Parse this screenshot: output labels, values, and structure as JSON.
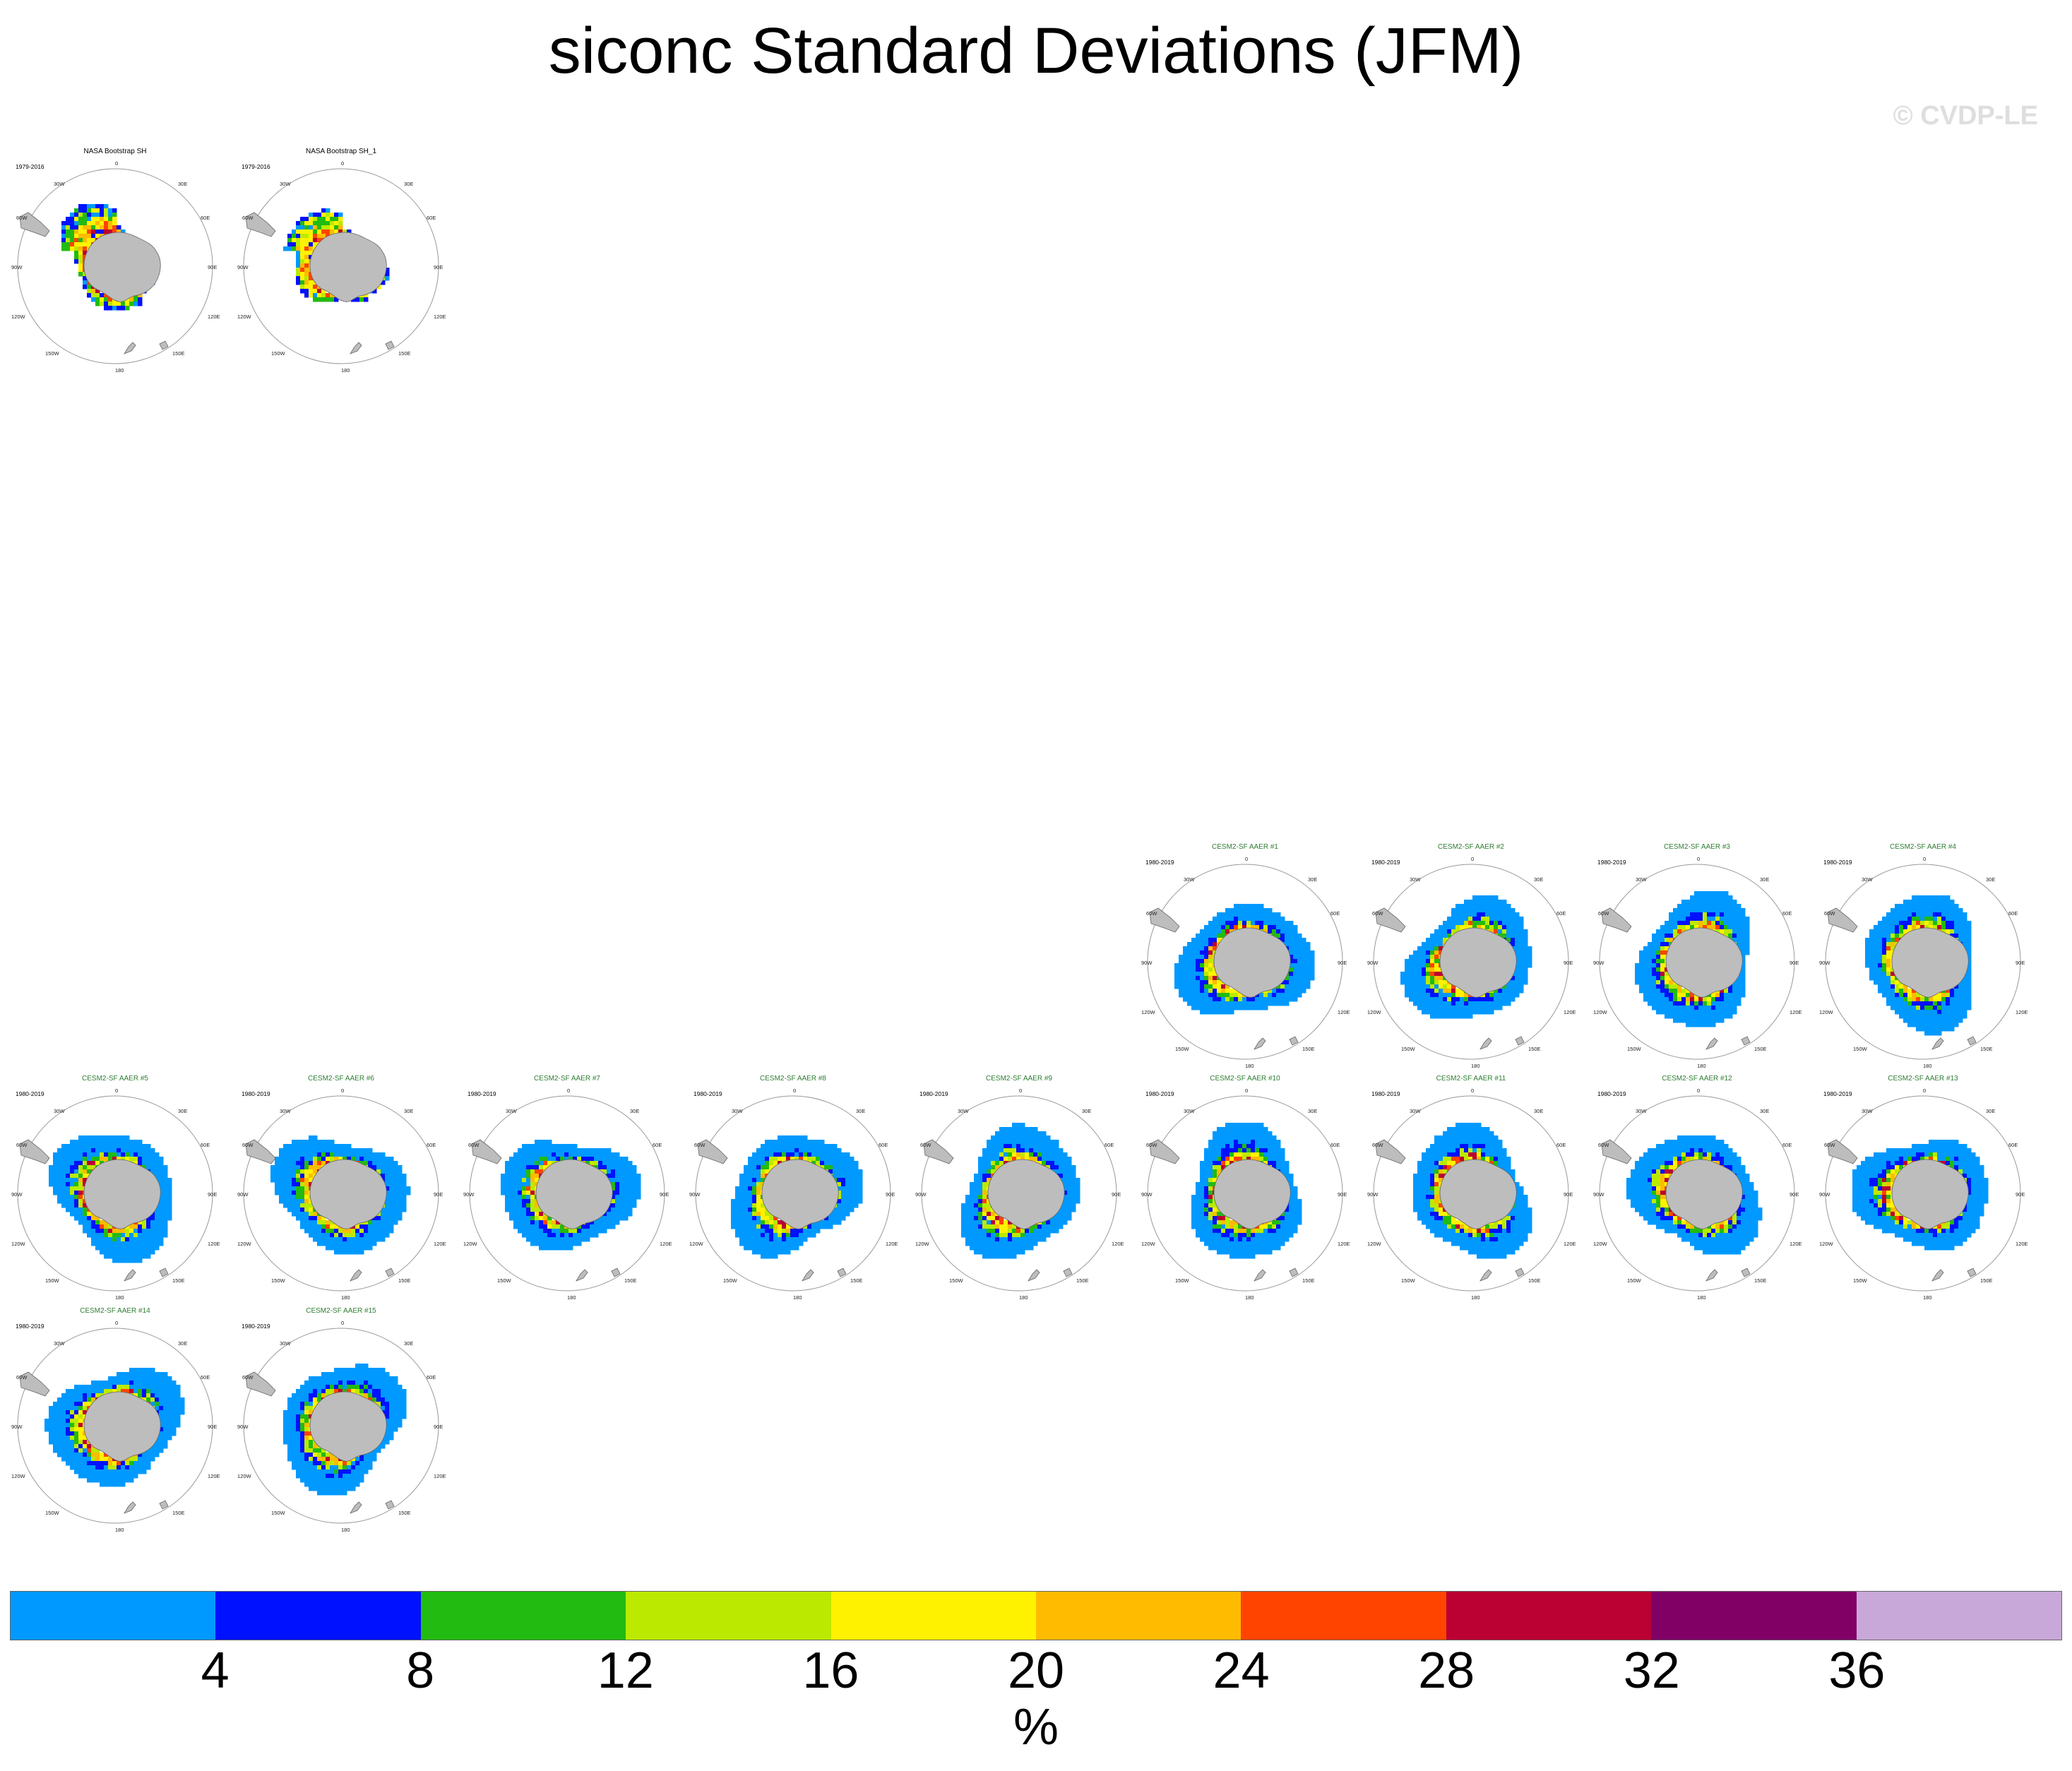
{
  "figure": {
    "title": "siconc Standard Deviations (JFM)",
    "credit": "© CVDP-LE"
  },
  "chart_data": {
    "type": "heatmap",
    "title": "siconc Standard Deviations (JFM)",
    "projection": "south-polar-stereographic",
    "grid_labels": {
      "top": "0",
      "bottom": "180",
      "tl": "30W",
      "tr": "30E",
      "ul": "60W",
      "ur": "60E",
      "ml": "90W",
      "mr": "90E",
      "ll": "120W",
      "lr": "120E",
      "bl": "150W",
      "br": "150E"
    },
    "panels": [
      {
        "name": "NASA Bootstrap SH",
        "period": "1979-2016",
        "type": "obs"
      },
      {
        "name": "NASA Bootstrap SH_1",
        "period": "1979-2016",
        "type": "obs"
      },
      {
        "name": "CESM2-SF AAER #1",
        "period": "1980-2019",
        "type": "model"
      },
      {
        "name": "CESM2-SF AAER #2",
        "period": "1980-2019",
        "type": "model"
      },
      {
        "name": "CESM2-SF AAER #3",
        "period": "1980-2019",
        "type": "model"
      },
      {
        "name": "CESM2-SF AAER #4",
        "period": "1980-2019",
        "type": "model"
      },
      {
        "name": "CESM2-SF AAER #5",
        "period": "1980-2019",
        "type": "model"
      },
      {
        "name": "CESM2-SF AAER #6",
        "period": "1980-2019",
        "type": "model"
      },
      {
        "name": "CESM2-SF AAER #7",
        "period": "1980-2019",
        "type": "model"
      },
      {
        "name": "CESM2-SF AAER #8",
        "period": "1980-2019",
        "type": "model"
      },
      {
        "name": "CESM2-SF AAER #9",
        "period": "1980-2019",
        "type": "model"
      },
      {
        "name": "CESM2-SF AAER #10",
        "period": "1980-2019",
        "type": "model"
      },
      {
        "name": "CESM2-SF AAER #11",
        "period": "1980-2019",
        "type": "model"
      },
      {
        "name": "CESM2-SF AAER #12",
        "period": "1980-2019",
        "type": "model"
      },
      {
        "name": "CESM2-SF AAER #13",
        "period": "1980-2019",
        "type": "model"
      },
      {
        "name": "CESM2-SF AAER #14",
        "period": "1980-2019",
        "type": "model"
      },
      {
        "name": "CESM2-SF AAER #15",
        "period": "1980-2019",
        "type": "model"
      }
    ],
    "colorbar": {
      "levels": [
        "4",
        "8",
        "12",
        "16",
        "20",
        "24",
        "28",
        "32",
        "36"
      ],
      "colors": [
        "#0099ff",
        "#0011ff",
        "#22bb11",
        "#bbea00",
        "#fff200",
        "#ffbb00",
        "#ff4400",
        "#bb0033",
        "#800066",
        "#c8a8d8"
      ],
      "units": "%"
    }
  },
  "style": {
    "obs_title_color": "#000000",
    "model_title_color": "#2e7d32",
    "land_color": "#bdbdbd"
  }
}
